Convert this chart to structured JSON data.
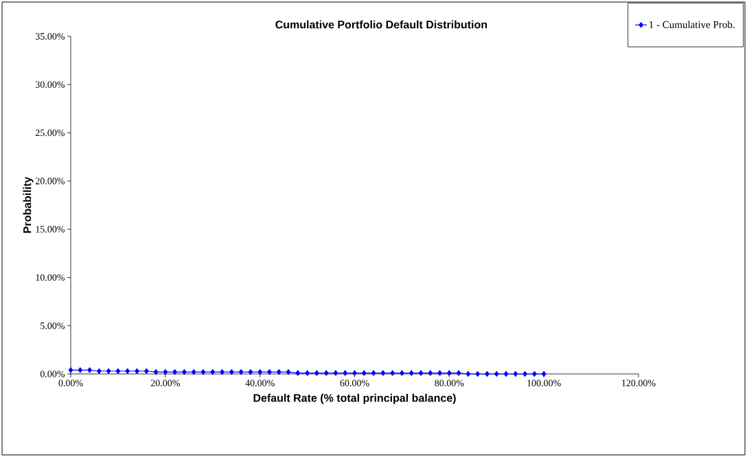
{
  "chart_data": {
    "type": "line",
    "title": "Cumulative Portfolio Default Distribution",
    "xlabel": "Default Rate (% total principal balance)",
    "ylabel": "Probability",
    "x": [
      0,
      2,
      4,
      6,
      8,
      10,
      12,
      14,
      16,
      18,
      20,
      22,
      24,
      26,
      28,
      30,
      32,
      34,
      36,
      38,
      40,
      42,
      44,
      46,
      48,
      50,
      52,
      54,
      56,
      58,
      60,
      62,
      64,
      66,
      68,
      70,
      72,
      74,
      76,
      78,
      80,
      82,
      84,
      86,
      88,
      90,
      92,
      94,
      96,
      98,
      100
    ],
    "series": [
      {
        "name": "1 - Cumulative Prob.",
        "color": "#0000ff",
        "values": [
          0.4,
          0.4,
          0.4,
          0.3,
          0.3,
          0.3,
          0.3,
          0.3,
          0.3,
          0.2,
          0.2,
          0.2,
          0.2,
          0.2,
          0.2,
          0.2,
          0.2,
          0.2,
          0.2,
          0.2,
          0.2,
          0.2,
          0.2,
          0.2,
          0.1,
          0.1,
          0.1,
          0.1,
          0.1,
          0.1,
          0.1,
          0.1,
          0.1,
          0.1,
          0.1,
          0.1,
          0.1,
          0.1,
          0.1,
          0.1,
          0.1,
          0.1,
          0.0,
          0.0,
          0.0,
          0.0,
          0.0,
          0.0,
          0.0,
          0.0,
          0.0
        ]
      }
    ],
    "xlim": [
      0,
      120
    ],
    "ylim": [
      0,
      35
    ],
    "xticks": [
      {
        "value": 0,
        "label": "0.00%"
      },
      {
        "value": 20,
        "label": "20.00%"
      },
      {
        "value": 40,
        "label": "40.00%"
      },
      {
        "value": 60,
        "label": "60.00%"
      },
      {
        "value": 80,
        "label": "80.00%"
      },
      {
        "value": 100,
        "label": "100.00%"
      },
      {
        "value": 120,
        "label": "120.00%"
      }
    ],
    "yticks": [
      {
        "value": 0,
        "label": "0.00%"
      },
      {
        "value": 5,
        "label": "5.00%"
      },
      {
        "value": 10,
        "label": "10.00%"
      },
      {
        "value": 15,
        "label": "15.00%"
      },
      {
        "value": 20,
        "label": "20.00%"
      },
      {
        "value": 25,
        "label": "25.00%"
      },
      {
        "value": 30,
        "label": "30.00%"
      },
      {
        "value": 35,
        "label": "35.00%"
      }
    ],
    "grid": false,
    "legend": "top right",
    "marker": "diamond",
    "line_style": "solid"
  }
}
